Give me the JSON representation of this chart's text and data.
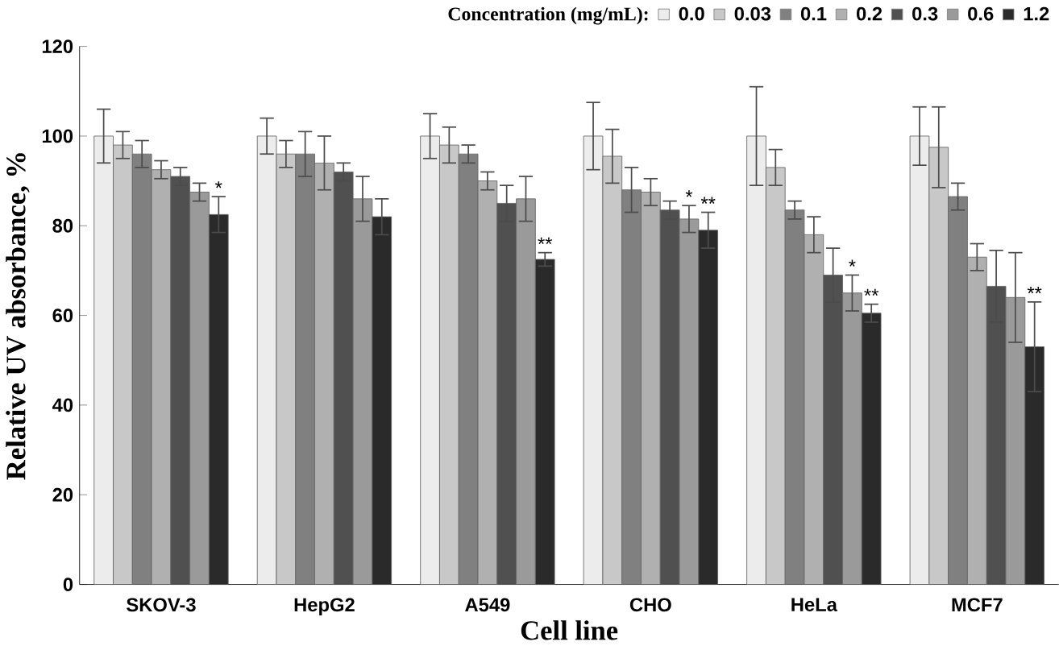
{
  "chart_data": {
    "type": "bar",
    "xlabel": "Cell line",
    "ylabel": "Relative UV absorbance, %",
    "legend_title": "Concentration (mg/mL):",
    "legend": "top",
    "categories": [
      "SKOV-3",
      "HepG2",
      "A549",
      "CHO",
      "HeLa",
      "MCF7"
    ],
    "ylim": [
      0,
      120
    ],
    "yticks": [
      0,
      20,
      40,
      60,
      80,
      100,
      120
    ],
    "grid": false,
    "series": [
      {
        "name": "0.0",
        "color": "#ececec",
        "values": [
          100,
          100,
          100,
          100,
          100,
          100
        ],
        "errors": [
          6,
          4,
          5,
          7.5,
          11,
          6.5
        ]
      },
      {
        "name": "0.03",
        "color": "#c8c8c8",
        "values": [
          98,
          96,
          98,
          95.5,
          93,
          97.5
        ],
        "errors": [
          3,
          3,
          4,
          6,
          4,
          9
        ]
      },
      {
        "name": "0.1",
        "color": "#808080",
        "values": [
          96,
          96,
          96,
          88,
          83.5,
          86.5
        ],
        "errors": [
          3,
          5,
          2,
          5,
          2,
          3
        ]
      },
      {
        "name": "0.2",
        "color": "#b0b0b0",
        "values": [
          92.5,
          94,
          90,
          87.5,
          78,
          73
        ],
        "errors": [
          2,
          6,
          2,
          3,
          4,
          3
        ]
      },
      {
        "name": "0.3",
        "color": "#505050",
        "values": [
          91,
          92,
          85,
          83.5,
          69,
          66.5
        ],
        "errors": [
          2,
          2,
          4,
          2,
          6,
          8
        ]
      },
      {
        "name": "0.6",
        "color": "#9a9a9a",
        "values": [
          87.5,
          86,
          86,
          81.5,
          65,
          64
        ],
        "errors": [
          2,
          5,
          5,
          3,
          4,
          10
        ]
      },
      {
        "name": "1.2",
        "color": "#2a2a2a",
        "values": [
          82.5,
          82,
          72.5,
          79,
          60.5,
          53
        ],
        "errors": [
          4,
          4,
          1.5,
          4,
          2,
          10
        ]
      }
    ],
    "annotations": [
      "*",
      "**",
      "*",
      "**",
      "*",
      "**",
      "**"
    ]
  }
}
